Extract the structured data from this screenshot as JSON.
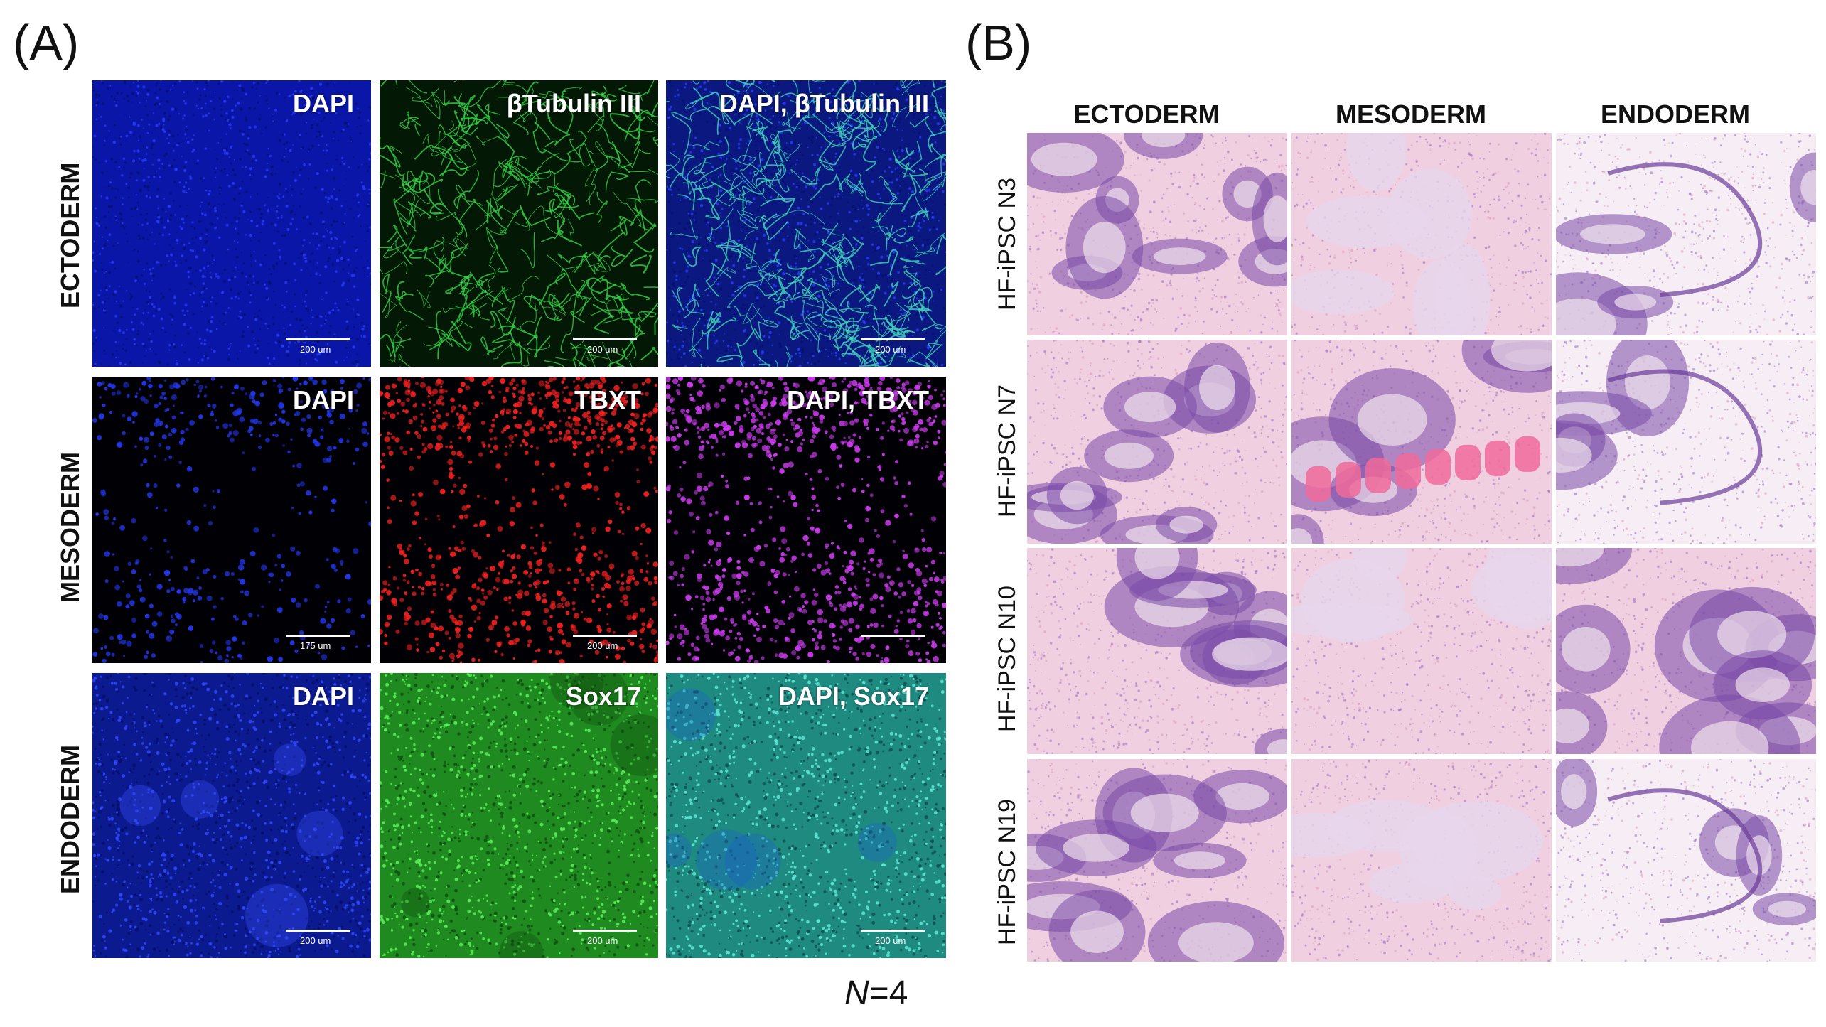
{
  "panelA": {
    "letter": "(A)",
    "rows": [
      {
        "label": "ECTODERM",
        "tiles": [
          {
            "label": "DAPI",
            "scalebar": "200 um",
            "style": "dapi_dense"
          },
          {
            "label": "βTubulin III",
            "scalebar": "200 um",
            "style": "tubulin"
          },
          {
            "label": "DAPI, βTubulin III",
            "scalebar": "200 um",
            "style": "tubulin_merge"
          }
        ]
      },
      {
        "label": "MESODERM",
        "tiles": [
          {
            "label": "DAPI",
            "scalebar": "175 um",
            "style": "dapi_sparse"
          },
          {
            "label": "TBXT",
            "scalebar": "200 um",
            "style": "tbxt"
          },
          {
            "label": "DAPI, TBXT",
            "scalebar": "",
            "style": "tbxt_merge"
          }
        ]
      },
      {
        "label": "ENDODERM",
        "tiles": [
          {
            "label": "DAPI",
            "scalebar": "200 um",
            "style": "dapi_endo"
          },
          {
            "label": "Sox17",
            "scalebar": "200 um",
            "style": "sox17"
          },
          {
            "label": "DAPI, Sox17",
            "scalebar": "200 um",
            "style": "sox17_merge"
          }
        ]
      }
    ],
    "n_prefix": "N",
    "n_suffix": "=4",
    "colors": {
      "dapi": "#1a2ee0",
      "tubulin": "#2ec83a",
      "tbxt": "#e01818",
      "merge_magenta": "#c42ae0",
      "sox17": "#2ec02e",
      "sox17_merge": "#2ac0b0"
    }
  },
  "panelB": {
    "letter": "(B)",
    "columns": [
      "ECTODERM",
      "MESODERM",
      "ENDODERM"
    ],
    "rows": [
      "HF-iPSC N3",
      "HF-iPSC N7",
      "HF-iPSC N10",
      "HF-iPSC N19"
    ],
    "colors": {
      "he_pink": "#f0cfe0",
      "he_purple": "#7a4aa8",
      "he_muscle": "#f06a9a"
    }
  }
}
